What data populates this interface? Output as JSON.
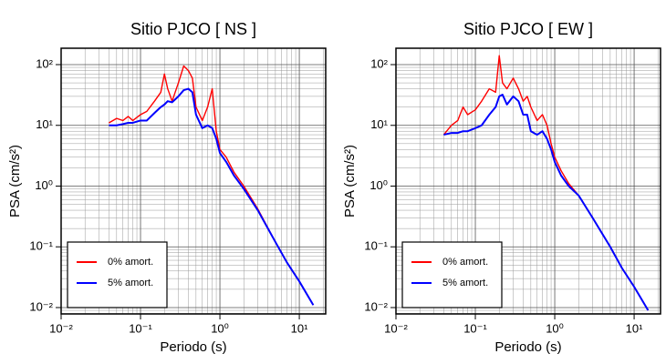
{
  "chart_data": [
    {
      "type": "line",
      "title": "Sitio PJCO [ NS ]",
      "xlabel": "Periodo (s)",
      "ylabel": "PSA (cm/s²)",
      "xscale": "log",
      "yscale": "log",
      "grid": true,
      "legend": "lower left",
      "x": [
        0.04,
        0.05,
        0.06,
        0.07,
        0.08,
        0.1,
        0.12,
        0.15,
        0.18,
        0.2,
        0.22,
        0.25,
        0.3,
        0.35,
        0.4,
        0.45,
        0.5,
        0.6,
        0.7,
        0.8,
        0.9,
        1.0,
        1.2,
        1.5,
        2,
        3,
        5,
        7,
        10,
        15
      ],
      "series": [
        {
          "name": "0% amort.",
          "color": "#ff0000",
          "values": [
            11,
            13,
            12,
            14,
            12,
            15,
            17,
            25,
            35,
            70,
            40,
            25,
            50,
            95,
            80,
            60,
            20,
            12,
            20,
            40,
            8,
            4,
            3,
            1.7,
            1.0,
            0.42,
            0.12,
            0.055,
            0.027,
            0.011
          ]
        },
        {
          "name": "5% amort.",
          "color": "#0000ff",
          "values": [
            10,
            10,
            10.5,
            11,
            11,
            12,
            12,
            16,
            20,
            22,
            25,
            24,
            30,
            38,
            40,
            35,
            15,
            9,
            10,
            9,
            6,
            3.5,
            2.5,
            1.5,
            0.9,
            0.4,
            0.12,
            0.055,
            0.027,
            0.011
          ]
        }
      ],
      "xlim": [
        0.01,
        21.5
      ],
      "ylim": [
        0.00785,
        186
      ],
      "xticks": [
        {
          "value": 0.01,
          "label": "10⁻²"
        },
        {
          "value": 0.1,
          "label": "10⁻¹"
        },
        {
          "value": 1,
          "label": "10⁰"
        },
        {
          "value": 10,
          "label": "10¹"
        }
      ],
      "yticks": [
        {
          "value": 0.01,
          "label": "10⁻²"
        },
        {
          "value": 0.1,
          "label": "10⁻¹"
        },
        {
          "value": 1,
          "label": "10⁰"
        },
        {
          "value": 10,
          "label": "10¹"
        },
        {
          "value": 100,
          "label": "10²"
        }
      ]
    },
    {
      "type": "line",
      "title": "Sitio PJCO [ EW ]",
      "xlabel": "Periodo (s)",
      "ylabel": "PSA (cm/s²)",
      "xscale": "log",
      "yscale": "log",
      "grid": true,
      "legend": "lower left",
      "x": [
        0.04,
        0.05,
        0.06,
        0.07,
        0.08,
        0.1,
        0.12,
        0.15,
        0.18,
        0.2,
        0.22,
        0.25,
        0.3,
        0.35,
        0.4,
        0.45,
        0.5,
        0.6,
        0.7,
        0.8,
        0.9,
        1.0,
        1.2,
        1.5,
        2,
        3,
        5,
        7,
        10,
        15
      ],
      "series": [
        {
          "name": "0% amort.",
          "color": "#ff0000",
          "values": [
            7,
            10,
            12,
            20,
            15,
            18,
            25,
            40,
            35,
            140,
            50,
            40,
            60,
            40,
            25,
            30,
            20,
            12,
            15,
            10,
            5,
            3,
            1.8,
            1.1,
            0.7,
            0.3,
            0.1,
            0.045,
            0.022,
            0.009
          ]
        },
        {
          "name": "5% amort.",
          "color": "#0000ff",
          "values": [
            7,
            7.5,
            7.5,
            8,
            8,
            9,
            10,
            15,
            20,
            30,
            32,
            22,
            30,
            25,
            15,
            15,
            8,
            7,
            8,
            6,
            4,
            2.5,
            1.5,
            1.0,
            0.7,
            0.3,
            0.1,
            0.045,
            0.022,
            0.009
          ]
        }
      ],
      "xlim": [
        0.01,
        21.5
      ],
      "ylim": [
        0.00785,
        186
      ],
      "xticks": [
        {
          "value": 0.01,
          "label": "10⁻²"
        },
        {
          "value": 0.1,
          "label": "10⁻¹"
        },
        {
          "value": 1,
          "label": "10⁰"
        },
        {
          "value": 10,
          "label": "10¹"
        }
      ],
      "yticks": [
        {
          "value": 0.01,
          "label": "10⁻²"
        },
        {
          "value": 0.1,
          "label": "10⁻¹"
        },
        {
          "value": 1,
          "label": "10⁰"
        },
        {
          "value": 10,
          "label": "10¹"
        },
        {
          "value": 100,
          "label": "10²"
        }
      ]
    }
  ]
}
